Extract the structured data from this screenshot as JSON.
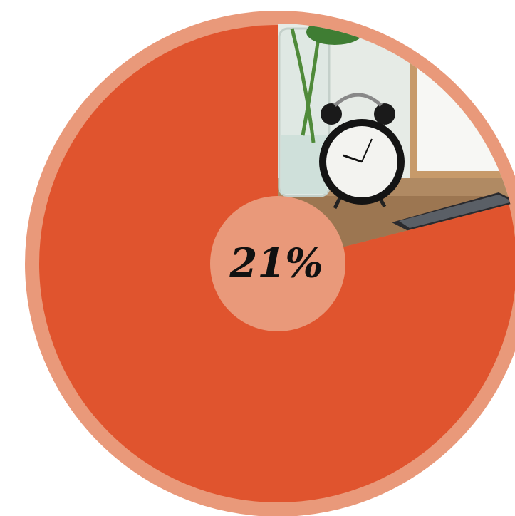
{
  "chart_data": {
    "type": "pie",
    "values": [
      21
    ],
    "value_labels": [
      "21%"
    ],
    "color": "#e0542e",
    "ring_color": "#e9997a"
  }
}
